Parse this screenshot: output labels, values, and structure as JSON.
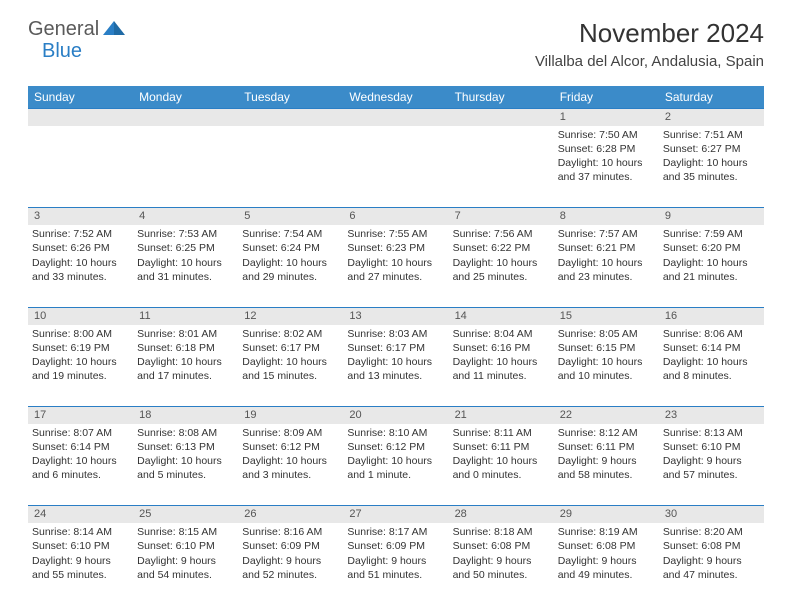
{
  "brand": {
    "part1": "General",
    "part2": "Blue"
  },
  "title": "November 2024",
  "location": "Villalba del Alcor, Andalusia, Spain",
  "colors": {
    "header_bg": "#3b8bc9",
    "header_text": "#ffffff",
    "border": "#2a7ec5",
    "daynum_bg": "#e8e8e8",
    "text": "#333333",
    "brand_gray": "#5a5a5a",
    "brand_blue": "#2a7ec5"
  },
  "day_headers": [
    "Sunday",
    "Monday",
    "Tuesday",
    "Wednesday",
    "Thursday",
    "Friday",
    "Saturday"
  ],
  "weeks": [
    {
      "nums": [
        "",
        "",
        "",
        "",
        "",
        "1",
        "2"
      ],
      "cells": [
        null,
        null,
        null,
        null,
        null,
        {
          "sunrise": "Sunrise: 7:50 AM",
          "sunset": "Sunset: 6:28 PM",
          "day1": "Daylight: 10 hours",
          "day2": "and 37 minutes."
        },
        {
          "sunrise": "Sunrise: 7:51 AM",
          "sunset": "Sunset: 6:27 PM",
          "day1": "Daylight: 10 hours",
          "day2": "and 35 minutes."
        }
      ]
    },
    {
      "nums": [
        "3",
        "4",
        "5",
        "6",
        "7",
        "8",
        "9"
      ],
      "cells": [
        {
          "sunrise": "Sunrise: 7:52 AM",
          "sunset": "Sunset: 6:26 PM",
          "day1": "Daylight: 10 hours",
          "day2": "and 33 minutes."
        },
        {
          "sunrise": "Sunrise: 7:53 AM",
          "sunset": "Sunset: 6:25 PM",
          "day1": "Daylight: 10 hours",
          "day2": "and 31 minutes."
        },
        {
          "sunrise": "Sunrise: 7:54 AM",
          "sunset": "Sunset: 6:24 PM",
          "day1": "Daylight: 10 hours",
          "day2": "and 29 minutes."
        },
        {
          "sunrise": "Sunrise: 7:55 AM",
          "sunset": "Sunset: 6:23 PM",
          "day1": "Daylight: 10 hours",
          "day2": "and 27 minutes."
        },
        {
          "sunrise": "Sunrise: 7:56 AM",
          "sunset": "Sunset: 6:22 PM",
          "day1": "Daylight: 10 hours",
          "day2": "and 25 minutes."
        },
        {
          "sunrise": "Sunrise: 7:57 AM",
          "sunset": "Sunset: 6:21 PM",
          "day1": "Daylight: 10 hours",
          "day2": "and 23 minutes."
        },
        {
          "sunrise": "Sunrise: 7:59 AM",
          "sunset": "Sunset: 6:20 PM",
          "day1": "Daylight: 10 hours",
          "day2": "and 21 minutes."
        }
      ]
    },
    {
      "nums": [
        "10",
        "11",
        "12",
        "13",
        "14",
        "15",
        "16"
      ],
      "cells": [
        {
          "sunrise": "Sunrise: 8:00 AM",
          "sunset": "Sunset: 6:19 PM",
          "day1": "Daylight: 10 hours",
          "day2": "and 19 minutes."
        },
        {
          "sunrise": "Sunrise: 8:01 AM",
          "sunset": "Sunset: 6:18 PM",
          "day1": "Daylight: 10 hours",
          "day2": "and 17 minutes."
        },
        {
          "sunrise": "Sunrise: 8:02 AM",
          "sunset": "Sunset: 6:17 PM",
          "day1": "Daylight: 10 hours",
          "day2": "and 15 minutes."
        },
        {
          "sunrise": "Sunrise: 8:03 AM",
          "sunset": "Sunset: 6:17 PM",
          "day1": "Daylight: 10 hours",
          "day2": "and 13 minutes."
        },
        {
          "sunrise": "Sunrise: 8:04 AM",
          "sunset": "Sunset: 6:16 PM",
          "day1": "Daylight: 10 hours",
          "day2": "and 11 minutes."
        },
        {
          "sunrise": "Sunrise: 8:05 AM",
          "sunset": "Sunset: 6:15 PM",
          "day1": "Daylight: 10 hours",
          "day2": "and 10 minutes."
        },
        {
          "sunrise": "Sunrise: 8:06 AM",
          "sunset": "Sunset: 6:14 PM",
          "day1": "Daylight: 10 hours",
          "day2": "and 8 minutes."
        }
      ]
    },
    {
      "nums": [
        "17",
        "18",
        "19",
        "20",
        "21",
        "22",
        "23"
      ],
      "cells": [
        {
          "sunrise": "Sunrise: 8:07 AM",
          "sunset": "Sunset: 6:14 PM",
          "day1": "Daylight: 10 hours",
          "day2": "and 6 minutes."
        },
        {
          "sunrise": "Sunrise: 8:08 AM",
          "sunset": "Sunset: 6:13 PM",
          "day1": "Daylight: 10 hours",
          "day2": "and 5 minutes."
        },
        {
          "sunrise": "Sunrise: 8:09 AM",
          "sunset": "Sunset: 6:12 PM",
          "day1": "Daylight: 10 hours",
          "day2": "and 3 minutes."
        },
        {
          "sunrise": "Sunrise: 8:10 AM",
          "sunset": "Sunset: 6:12 PM",
          "day1": "Daylight: 10 hours",
          "day2": "and 1 minute."
        },
        {
          "sunrise": "Sunrise: 8:11 AM",
          "sunset": "Sunset: 6:11 PM",
          "day1": "Daylight: 10 hours",
          "day2": "and 0 minutes."
        },
        {
          "sunrise": "Sunrise: 8:12 AM",
          "sunset": "Sunset: 6:11 PM",
          "day1": "Daylight: 9 hours",
          "day2": "and 58 minutes."
        },
        {
          "sunrise": "Sunrise: 8:13 AM",
          "sunset": "Sunset: 6:10 PM",
          "day1": "Daylight: 9 hours",
          "day2": "and 57 minutes."
        }
      ]
    },
    {
      "nums": [
        "24",
        "25",
        "26",
        "27",
        "28",
        "29",
        "30"
      ],
      "cells": [
        {
          "sunrise": "Sunrise: 8:14 AM",
          "sunset": "Sunset: 6:10 PM",
          "day1": "Daylight: 9 hours",
          "day2": "and 55 minutes."
        },
        {
          "sunrise": "Sunrise: 8:15 AM",
          "sunset": "Sunset: 6:10 PM",
          "day1": "Daylight: 9 hours",
          "day2": "and 54 minutes."
        },
        {
          "sunrise": "Sunrise: 8:16 AM",
          "sunset": "Sunset: 6:09 PM",
          "day1": "Daylight: 9 hours",
          "day2": "and 52 minutes."
        },
        {
          "sunrise": "Sunrise: 8:17 AM",
          "sunset": "Sunset: 6:09 PM",
          "day1": "Daylight: 9 hours",
          "day2": "and 51 minutes."
        },
        {
          "sunrise": "Sunrise: 8:18 AM",
          "sunset": "Sunset: 6:08 PM",
          "day1": "Daylight: 9 hours",
          "day2": "and 50 minutes."
        },
        {
          "sunrise": "Sunrise: 8:19 AM",
          "sunset": "Sunset: 6:08 PM",
          "day1": "Daylight: 9 hours",
          "day2": "and 49 minutes."
        },
        {
          "sunrise": "Sunrise: 8:20 AM",
          "sunset": "Sunset: 6:08 PM",
          "day1": "Daylight: 9 hours",
          "day2": "and 47 minutes."
        }
      ]
    }
  ]
}
